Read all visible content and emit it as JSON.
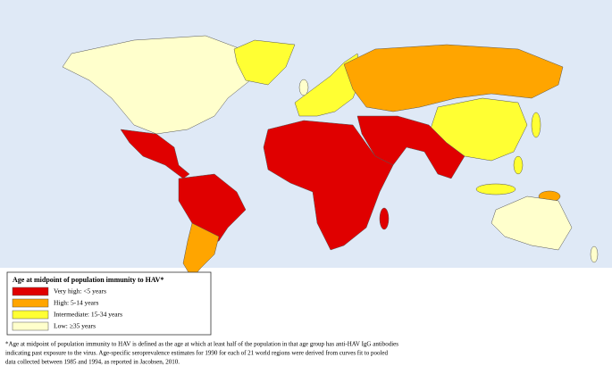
{
  "legend": {
    "title": "Age at midpoint of population immunity to HAV*",
    "items": [
      {
        "label": "Very high: <5 years",
        "color": "#e00000"
      },
      {
        "label": "High: 5-14 years",
        "color": "#ffa500"
      },
      {
        "label": "Intermediate: 15-34 years",
        "color": "#ffff33"
      },
      {
        "label": "Low: ≥35 years",
        "color": "#ffffcc"
      }
    ]
  },
  "footnote": {
    "lines": [
      "*Age at midpoint of population immunity to HAV is defined as the age at which at least half of the population in that age group has anti-HAV IgG antibodies",
      "indicating past exposure to the virus. Age-specific seroprevalence estimates for 1990 for each of 21 world regions were derived from curves fit to pooled",
      "data collected between 1985 and 1994, as reported in Jacobsen, 2010."
    ]
  }
}
